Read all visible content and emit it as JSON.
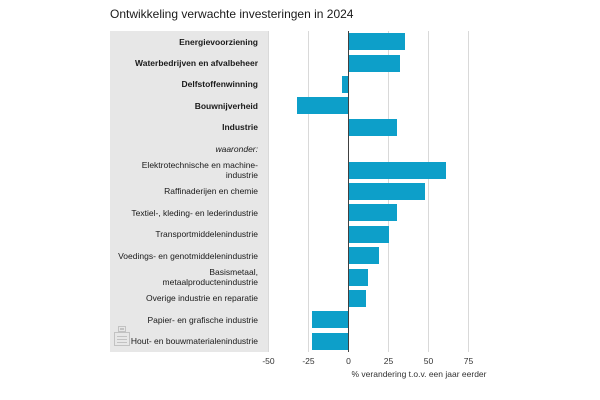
{
  "title": "Ontwikkeling verwachte investeringen in 2024",
  "colors": {
    "bar": "#0d9fc9",
    "panel_background": "#e7e7e7",
    "gridline": "#d9d9d9",
    "zero_axis": "#404040",
    "title_text": "#1a1a1a",
    "axis_text": "#333333",
    "pictogram": "#c2c2c2"
  },
  "icons": {
    "pictogram": "machine-pictogram-icon"
  },
  "chart_data": {
    "type": "bar",
    "orientation": "horizontal",
    "title": "Ontwikkeling verwachte investeringen in 2024",
    "xlabel": "% verandering t.o.v. een jaar eerder",
    "xlim": [
      -50,
      75
    ],
    "xticks": [
      -50,
      -25,
      0,
      25,
      50,
      75
    ],
    "grid": true,
    "legend": "none",
    "categories": [
      "Energievoorziening",
      "Waterbedrijven en afvalbeheer",
      "Delfstoffenwinning",
      "Bouwnijverheid",
      "Industrie",
      "waaronder:",
      "Elektrotechnische en machine-\nindustrie",
      "Raffinaderijen en chemie",
      "Textiel-, kleding- en lederindustrie",
      "Transportmiddelenindustrie",
      "Voedings- en genotmiddelenindustrie",
      "Basismetaal,\nmetaalproductenindustrie",
      "Overige industrie en reparatie",
      "Papier- en grafische industrie",
      "Hout- en bouwmaterialenindustrie"
    ],
    "label_styles": [
      "bold",
      "bold",
      "bold",
      "bold",
      "bold",
      "italic",
      "normal",
      "normal",
      "normal",
      "normal",
      "normal",
      "normal",
      "normal",
      "normal",
      "normal"
    ],
    "values": [
      35,
      32,
      -4,
      -32,
      30,
      null,
      61,
      48,
      30,
      25,
      19,
      12,
      11,
      -23,
      -23
    ]
  }
}
